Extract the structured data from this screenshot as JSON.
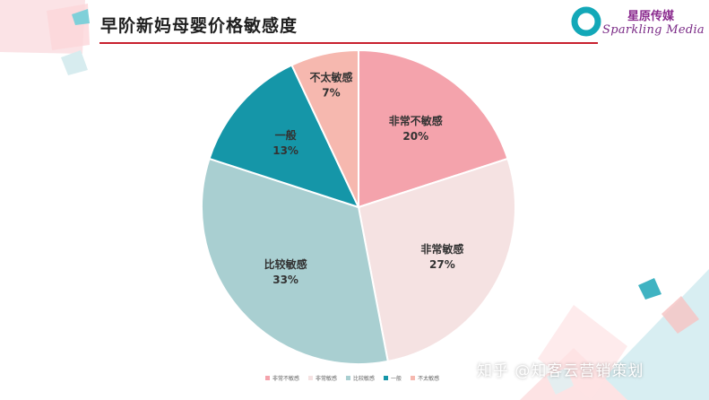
{
  "title": "早阶新妈母婴价格敏感度",
  "logo": {
    "name": "星原传媒",
    "subtitle": "Sparkling Media"
  },
  "watermark": "知乎 @知客云营销策划",
  "chart_data": {
    "type": "pie",
    "title": "",
    "start_angle_deg": 90,
    "direction": "clockwise",
    "slices": [
      {
        "label": "非常不敏感",
        "value": 20,
        "display": "20%",
        "color": "#f4a3ac"
      },
      {
        "label": "非常敏感",
        "value": 27,
        "display": "27%",
        "color": "#f5e2e2"
      },
      {
        "label": "比较敏感",
        "value": 33,
        "display": "33%",
        "color": "#a9cfd1"
      },
      {
        "label": "一般",
        "value": 13,
        "display": "13%",
        "color": "#1596a8"
      },
      {
        "label": "不太敏感",
        "value": 7,
        "display": "7%",
        "color": "#f6b8af"
      }
    ],
    "legend_position": "bottom"
  }
}
